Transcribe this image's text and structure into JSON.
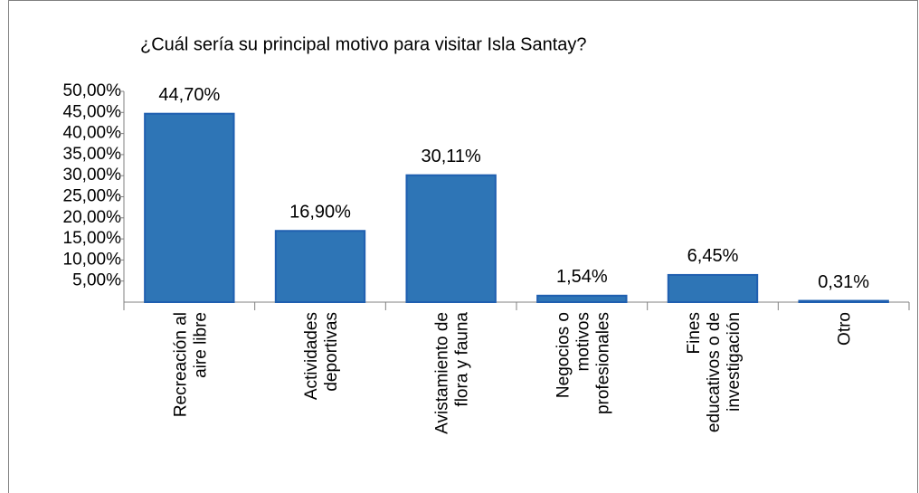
{
  "chart_data": {
    "type": "bar",
    "title": "¿Cuál sería su principal motivo para visitar Isla Santay?",
    "categories": [
      "Recreación al\naire libre",
      "Actividades\ndeportivas",
      "Avistamiento de\nflora y fauna",
      "Negocios  o\nmotivos\nprofesionales",
      "Fines\neducativos o de\ninvestigación",
      "Otro"
    ],
    "values": [
      44.7,
      16.9,
      30.11,
      1.54,
      6.45,
      0.31
    ],
    "value_labels": [
      "44,70%",
      "16,90%",
      "30,11%",
      "1,54%",
      "6,45%",
      "0,31%"
    ],
    "color": "#2e75b6",
    "ylim": [
      0,
      50
    ],
    "yticks": [
      {
        "value": 5,
        "label": "5,00%"
      },
      {
        "value": 10,
        "label": "10,00%"
      },
      {
        "value": 15,
        "label": "15,00%"
      },
      {
        "value": 20,
        "label": "20,00%"
      },
      {
        "value": 25,
        "label": "25,00%"
      },
      {
        "value": 30,
        "label": "30,00%"
      },
      {
        "value": 35,
        "label": "35,00%"
      },
      {
        "value": 40,
        "label": "40,00%"
      },
      {
        "value": 45,
        "label": "45,00%"
      },
      {
        "value": 50,
        "label": "50,00%"
      }
    ],
    "grid": false
  }
}
